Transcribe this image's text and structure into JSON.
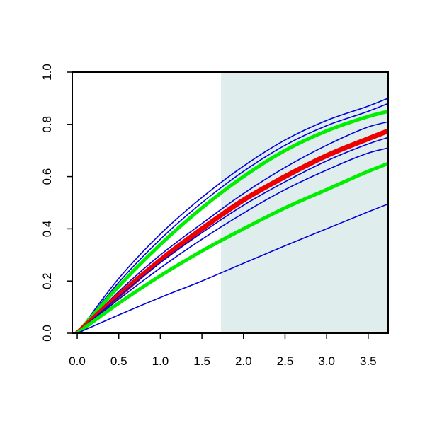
{
  "chart_data": {
    "type": "line",
    "title": "",
    "xlabel": "",
    "ylabel": "",
    "xlim": [
      -0.06,
      3.74
    ],
    "ylim": [
      0.0,
      1.0
    ],
    "x_ticks": [
      "0.0",
      "0.5",
      "1.0",
      "1.5",
      "2.0",
      "2.5",
      "3.0",
      "3.5"
    ],
    "y_ticks": [
      "0.0",
      "0.2",
      "0.4",
      "0.6",
      "0.8",
      "1.0"
    ],
    "grid": false,
    "shaded_region": {
      "x_from": 1.73,
      "x_to": 3.74,
      "color": "#e0eded"
    },
    "x": [
      0,
      0.5,
      1.0,
      1.5,
      2.0,
      2.5,
      3.0,
      3.5,
      3.74
    ],
    "series": [
      {
        "color": "#0000dd",
        "line_width": 1.6,
        "values": [
          0,
          0.21,
          0.38,
          0.52,
          0.64,
          0.74,
          0.815,
          0.87,
          0.9
        ]
      },
      {
        "color": "#0000dd",
        "line_width": 1.6,
        "values": [
          0,
          0.195,
          0.36,
          0.5,
          0.62,
          0.72,
          0.795,
          0.85,
          0.88
        ]
      },
      {
        "color": "#00ee00",
        "line_width": 5,
        "values": [
          0,
          0.18,
          0.34,
          0.48,
          0.6,
          0.7,
          0.775,
          0.83,
          0.85
        ]
      },
      {
        "color": "#0000dd",
        "line_width": 1.6,
        "values": [
          0,
          0.16,
          0.3,
          0.42,
          0.535,
          0.635,
          0.72,
          0.79,
          0.81
        ]
      },
      {
        "color": "#ee0000",
        "line_width": 7,
        "values": [
          0,
          0.145,
          0.28,
          0.4,
          0.51,
          0.6,
          0.68,
          0.745,
          0.775
        ]
      },
      {
        "color": "#0000dd",
        "line_width": 1.6,
        "values": [
          0,
          0.14,
          0.27,
          0.385,
          0.49,
          0.58,
          0.66,
          0.725,
          0.75
        ]
      },
      {
        "color": "#0000dd",
        "line_width": 1.6,
        "values": [
          0,
          0.13,
          0.25,
          0.36,
          0.46,
          0.55,
          0.625,
          0.69,
          0.71
        ]
      },
      {
        "color": "#00ee00",
        "line_width": 5,
        "values": [
          0,
          0.115,
          0.22,
          0.315,
          0.4,
          0.48,
          0.55,
          0.62,
          0.65
        ]
      },
      {
        "color": "#0000dd",
        "line_width": 1.6,
        "values": [
          0,
          0.07,
          0.137,
          0.2,
          0.268,
          0.335,
          0.4,
          0.465,
          0.495
        ]
      }
    ]
  }
}
